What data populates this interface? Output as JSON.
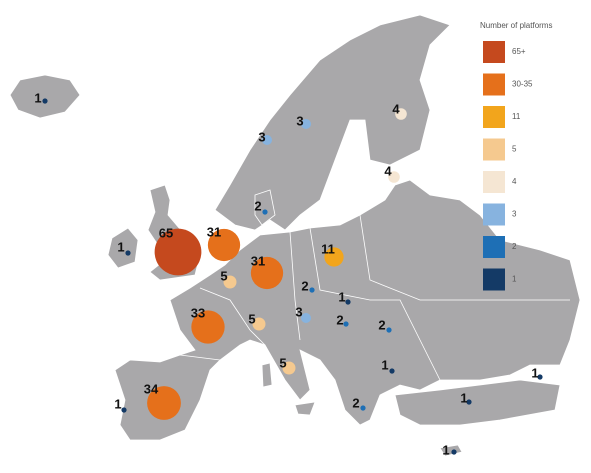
{
  "legend": {
    "title": "Number of platforms",
    "items": [
      {
        "label": "65+",
        "color": "#c5491e"
      },
      {
        "label": "30-35",
        "color": "#e5701b"
      },
      {
        "label": "11",
        "color": "#f2a51c"
      },
      {
        "label": "5",
        "color": "#f5c98f"
      },
      {
        "label": "4",
        "color": "#f5e6d3"
      },
      {
        "label": "3",
        "color": "#87b3df"
      },
      {
        "label": "2",
        "color": "#1e6fb5"
      },
      {
        "label": "1",
        "color": "#143a66"
      }
    ]
  },
  "markers": [
    {
      "value": 1,
      "color": "#143a66"
    },
    {
      "value": 3,
      "color": "#87b3df"
    },
    {
      "value": 3,
      "color": "#87b3df"
    },
    {
      "value": 4,
      "color": "#f5e6d3"
    },
    {
      "value": 4,
      "color": "#f5e6d3"
    },
    {
      "value": 2,
      "color": "#1e6fb5"
    },
    {
      "value": 1,
      "color": "#143a66"
    },
    {
      "value": 65,
      "color": "#c5491e"
    },
    {
      "value": 31,
      "color": "#e5701b"
    },
    {
      "value": 31,
      "color": "#e5701b"
    },
    {
      "value": 5,
      "color": "#f5c98f"
    },
    {
      "value": 11,
      "color": "#f2a51c"
    },
    {
      "value": 2,
      "color": "#1e6fb5"
    },
    {
      "value": 1,
      "color": "#143a66"
    },
    {
      "value": 33,
      "color": "#e5701b"
    },
    {
      "value": 5,
      "color": "#f5c98f"
    },
    {
      "value": 3,
      "color": "#87b3df"
    },
    {
      "value": 2,
      "color": "#1e6fb5"
    },
    {
      "value": 2,
      "color": "#1e6fb5"
    },
    {
      "value": 5,
      "color": "#f5c98f"
    },
    {
      "value": 1,
      "color": "#143a66"
    },
    {
      "value": 34,
      "color": "#e5701b"
    },
    {
      "value": 1,
      "color": "#143a66"
    },
    {
      "value": 2,
      "color": "#1e6fb5"
    },
    {
      "value": 1,
      "color": "#143a66"
    },
    {
      "value": 1,
      "color": "#143a66"
    },
    {
      "value": 1,
      "color": "#143a66"
    }
  ]
}
